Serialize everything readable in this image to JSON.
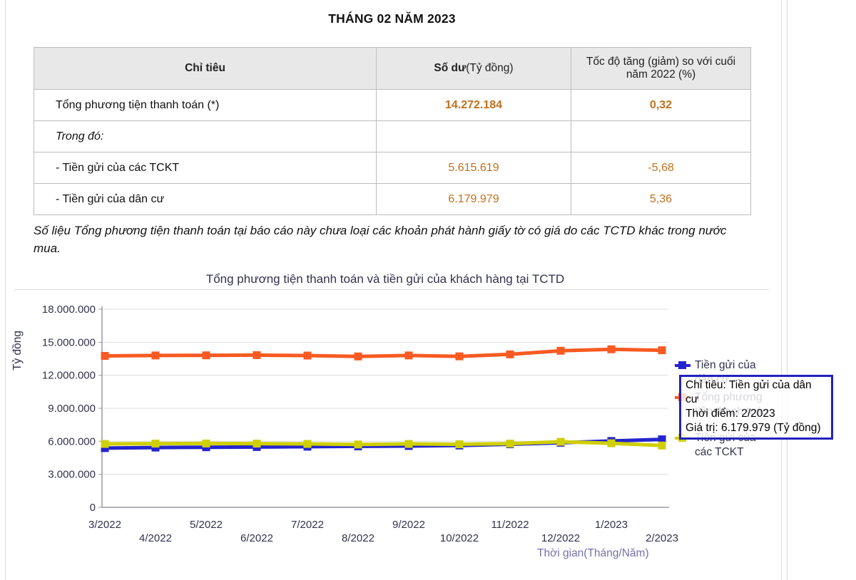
{
  "page": {
    "title": "THÁNG 02 NĂM 2023"
  },
  "table": {
    "headers": {
      "indicator": "Chỉ tiêu",
      "balance_bold": "Số dư",
      "balance_unit": "(Tỷ đồng)",
      "growth": "Tốc độ tăng (giảm) so với cuối năm 2022 (%)"
    },
    "rows": [
      {
        "label": "Tổng phương tiện thanh toán (*)",
        "balance": "14.272.184",
        "growth": "0,32"
      },
      {
        "label": "Trong đó:",
        "balance": "",
        "growth": ""
      },
      {
        "label": "- Tiền gửi của các TCKT",
        "balance": "5.615.619",
        "growth": "-5,68"
      },
      {
        "label": "- Tiền gửi của dân cư",
        "balance": "6.179.979",
        "growth": "5,36"
      }
    ]
  },
  "note": "Số liệu Tổng phương tiện thanh toán tại báo cáo này chưa loại các khoản phát hành giấy tờ có giá do các TCTD khác trong nước mua.",
  "chart_data": {
    "type": "line",
    "title": "Tổng phương tiện thanh toán và tiền gửi của khách hàng tại TCTD",
    "ylabel": "Tỷ đồng",
    "xlabel": "Thời gian(Tháng/Năm)",
    "ylim": [
      0,
      18000000
    ],
    "grid": true,
    "legend_position": "right",
    "yticks": [
      {
        "v": 0,
        "label": "0"
      },
      {
        "v": 3000000,
        "label": "3.000.000"
      },
      {
        "v": 6000000,
        "label": "6.000.000"
      },
      {
        "v": 9000000,
        "label": "9.000.000"
      },
      {
        "v": 12000000,
        "label": "12.000.000"
      },
      {
        "v": 15000000,
        "label": "15.000.000"
      },
      {
        "v": 18000000,
        "label": "18.000.000"
      }
    ],
    "categories": [
      "3/2022",
      "4/2022",
      "5/2022",
      "6/2022",
      "7/2022",
      "8/2022",
      "9/2022",
      "10/2022",
      "11/2022",
      "12/2022",
      "1/2023",
      "2/2023"
    ],
    "series": [
      {
        "name": "Tiền gửi của dân cư",
        "color": "#2424cf",
        "values": [
          5380000,
          5430000,
          5460000,
          5480000,
          5510000,
          5540000,
          5570000,
          5620000,
          5730000,
          5865600,
          6030000,
          6179979
        ]
      },
      {
        "name": "Tiền gửi của các TCKT",
        "color": "#cfcf04",
        "values": [
          5760000,
          5790000,
          5800000,
          5790000,
          5760000,
          5710000,
          5760000,
          5730000,
          5790000,
          5953800,
          5820000,
          5615619
        ]
      },
      {
        "name": "Tổng phương tiện thanh toán",
        "color": "#f85a22",
        "values": [
          13760000,
          13800000,
          13810000,
          13830000,
          13790000,
          13710000,
          13800000,
          13720000,
          13900000,
          14226700,
          14360000,
          14272184
        ]
      }
    ]
  },
  "legend": {
    "entries": [
      {
        "label": "Tiền gửi của dân cư",
        "color": "#2424cf"
      },
      {
        "label": "Tổng phương tiện thanh toán",
        "color": "#f85a22"
      },
      {
        "label": "Tiền gửi của các TCKT",
        "color": "#cfcf04"
      }
    ]
  },
  "tooltip": {
    "line1": "Chỉ tiêu: Tiền gửi của dân cư",
    "line2": "Thời điểm: 2/2023",
    "line3": "Giá trị: 6.179.979 (Tỷ đồng)"
  }
}
